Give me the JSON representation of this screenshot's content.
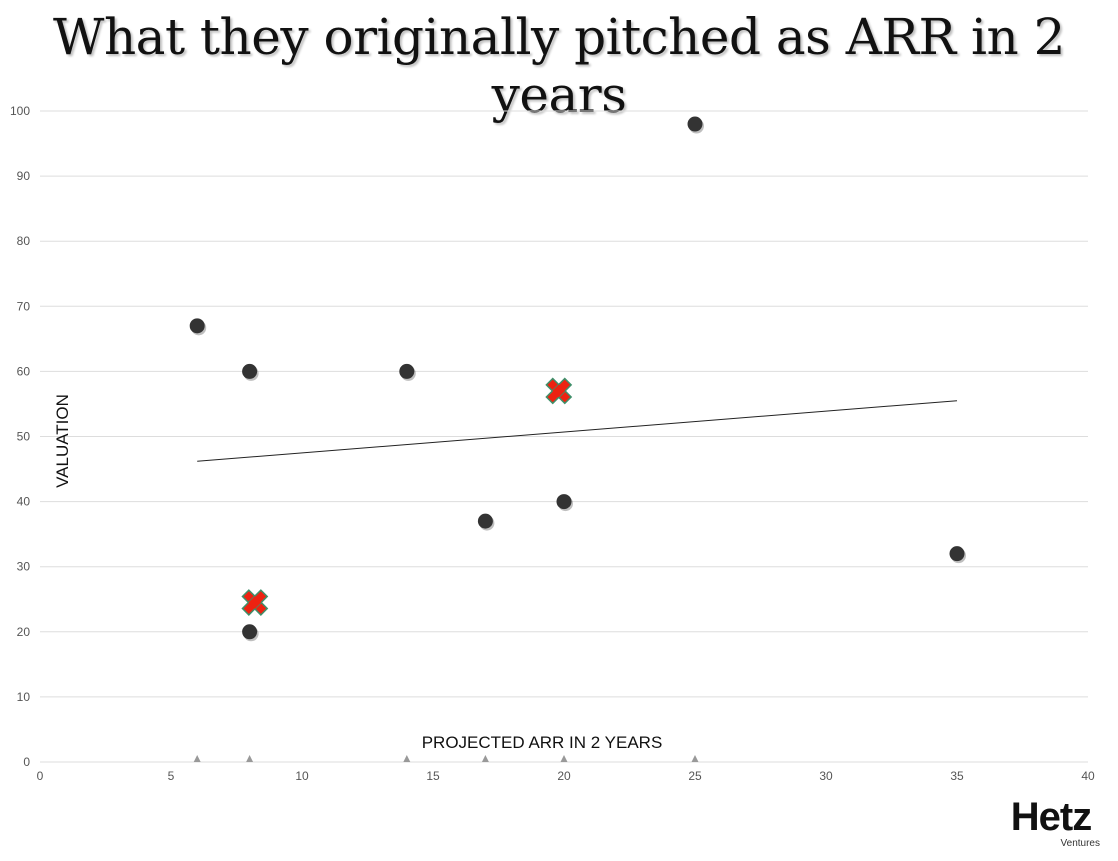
{
  "chart_data": {
    "type": "scatter",
    "title": "What they originally pitched as ARR in 2 years",
    "xlabel": "PROJECTED ARR IN 2 YEARS",
    "ylabel": "VALUATION",
    "xlim": [
      0,
      40
    ],
    "ylim": [
      0,
      100
    ],
    "xticks": [
      0,
      5,
      10,
      15,
      20,
      25,
      30,
      35,
      40
    ],
    "yticks": [
      0,
      10,
      20,
      30,
      40,
      50,
      60,
      70,
      80,
      90,
      100
    ],
    "grid": "horizontal",
    "series": [
      {
        "marker": "circle",
        "color": "#333333",
        "points": [
          {
            "x": 6,
            "y": 67
          },
          {
            "x": 8,
            "y": 60
          },
          {
            "x": 14,
            "y": 60
          },
          {
            "x": 8,
            "y": 20
          },
          {
            "x": 17,
            "y": 37
          },
          {
            "x": 20,
            "y": 40
          },
          {
            "x": 25,
            "y": 98
          },
          {
            "x": 35,
            "y": 32
          }
        ]
      },
      {
        "marker": "cross",
        "color": "#ee2211",
        "points": [
          {
            "x": 19.8,
            "y": 57
          },
          {
            "x": 8.2,
            "y": 24.5
          }
        ]
      }
    ],
    "trendline": {
      "type": "linear",
      "from": {
        "x": 6,
        "y": 46.2
      },
      "to": {
        "x": 35,
        "y": 55.5
      }
    },
    "x_markers": [
      6,
      8,
      14,
      17,
      20,
      25
    ]
  },
  "logo": {
    "name": "Hetz",
    "subtitle": "Ventures"
  }
}
